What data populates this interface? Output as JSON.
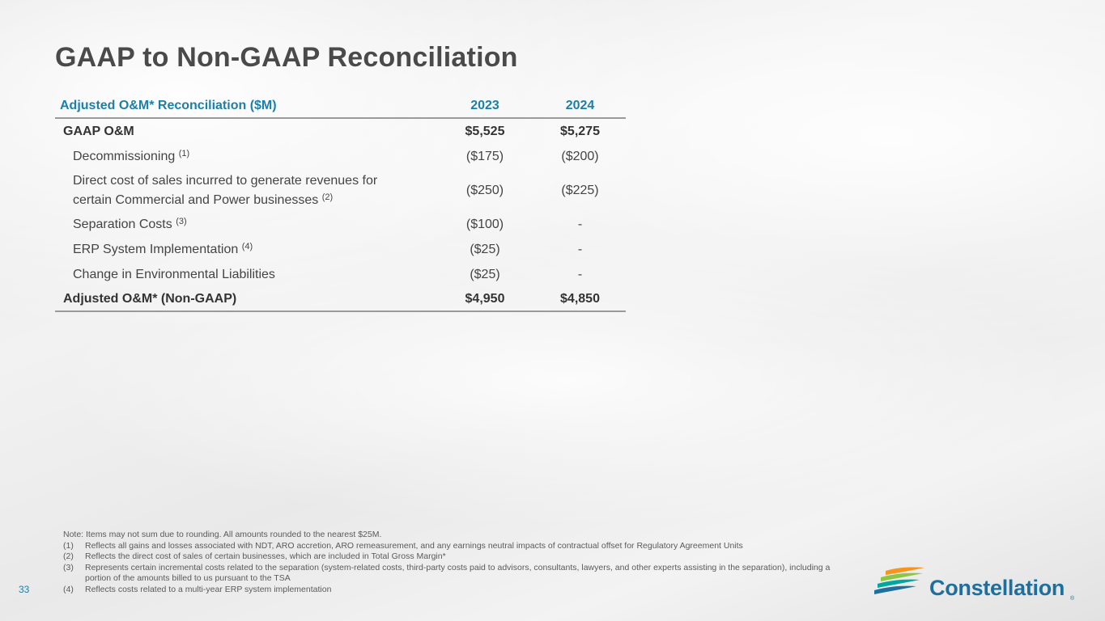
{
  "title": "GAAP to Non-GAAP Reconciliation",
  "table": {
    "header": {
      "label": "Adjusted O&M* Reconciliation ($M)",
      "col1": "2023",
      "col2": "2024"
    },
    "rows": [
      {
        "label": "GAAP O&M",
        "note": "",
        "v2023": "$5,525",
        "v2024": "$5,275"
      },
      {
        "label": "Decommissioning",
        "note": "(1)",
        "v2023": "($175)",
        "v2024": "($200)"
      },
      {
        "label_line1": "Direct cost of sales incurred to generate revenues for",
        "label_line2": "certain Commercial and Power businesses",
        "note": "(2)",
        "v2023": "($250)",
        "v2024": "($225)"
      },
      {
        "label": "Separation Costs",
        "note": "(3)",
        "v2023": "($100)",
        "v2024": "-"
      },
      {
        "label": "ERP System Implementation",
        "note": "(4)",
        "v2023": "($25)",
        "v2024": "-"
      },
      {
        "label": "Change in Environmental Liabilities",
        "note": "",
        "v2023": "($25)",
        "v2024": "-"
      },
      {
        "label": "Adjusted O&M* (Non-GAAP)",
        "note": "",
        "v2023": "$4,950",
        "v2024": "$4,850"
      }
    ]
  },
  "notes": {
    "intro": "Note: Items may not sum due to rounding. All amounts rounded to the nearest $25M.",
    "items": [
      {
        "num": "(1)",
        "text": "Reflects all gains and losses associated with NDT, ARO accretion, ARO remeasurement, and any earnings neutral impacts of contractual offset for Regulatory Agreement Units"
      },
      {
        "num": "(2)",
        "text": "Reflects the direct cost of sales of certain businesses, which are included in Total Gross Margin*"
      },
      {
        "num": "(3)",
        "text": "Represents certain incremental costs related to the separation (system-related costs, third-party costs paid to advisors, consultants, lawyers, and other experts assisting in the separation), including a portion of the amounts billed to us pursuant to the TSA"
      },
      {
        "num": "(4)",
        "text": "Reflects costs related to a multi-year ERP system implementation"
      }
    ]
  },
  "page_number": "33",
  "logo": {
    "text": "Constellation",
    "reg": "®",
    "icon": "constellation-swoosh-icon",
    "colors": [
      "#f7941d",
      "#8dc63f",
      "#00a79d",
      "#1e6f9d"
    ]
  },
  "accent_color": "#1d7fa8"
}
